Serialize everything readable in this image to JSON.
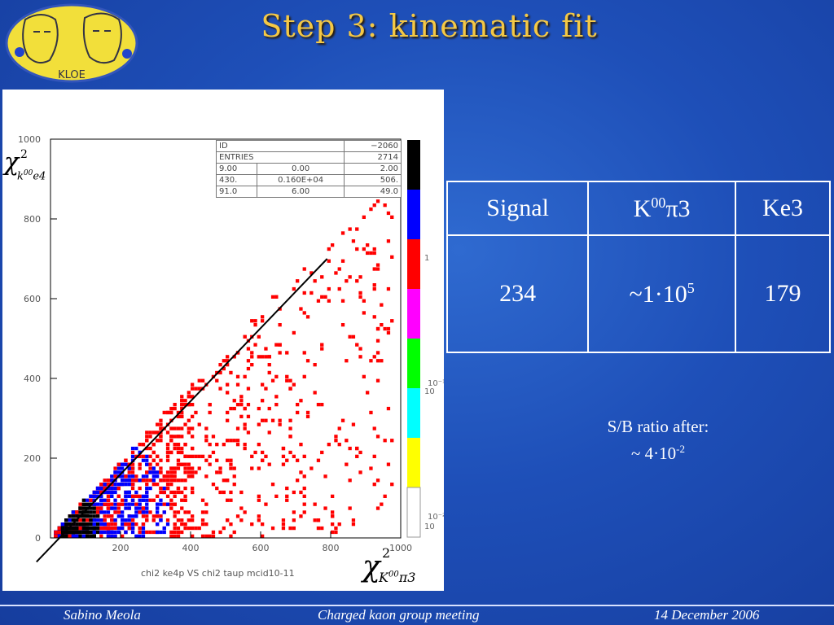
{
  "slide": {
    "title": "Step 3: kinematic fit",
    "logo_text": "KLOE"
  },
  "plot": {
    "y_axis_label": "χ²_{k00e4}",
    "x_axis_label": "χ²_{K00π3}",
    "caption": "chi2 ke4p VS chi2 taup mcid10-11",
    "x_ticks": [
      "200",
      "400",
      "600",
      "800",
      "1000"
    ],
    "y_ticks": [
      "0",
      "200",
      "400",
      "600",
      "800",
      "1000"
    ],
    "colorbar_ticks": [
      "1",
      "10⁻¹",
      "10",
      "10⁻²",
      "10"
    ],
    "colorbar_colors": [
      "#000000",
      "#0000ff",
      "#ff0000",
      "#ff00ff",
      "#00ff00",
      "#00ffff",
      "#ffff00",
      "#ffffff"
    ],
    "stats": {
      "id_label": "ID",
      "id_value": "−2060",
      "entries_label": "ENTRIES",
      "entries_value": "2714",
      "row1": [
        "9.00",
        "0.00",
        "2.00"
      ],
      "row2": [
        "430.",
        "0.160E+04",
        "506."
      ],
      "row3": [
        "91.0",
        "6.00",
        "49.0"
      ]
    },
    "x_range": [
      0,
      1000
    ],
    "y_range": [
      0,
      1000
    ],
    "cut_line": {
      "x1": -40,
      "y1": -60,
      "x2": 790,
      "y2": 700
    }
  },
  "table": {
    "headers": {
      "signal": "Signal",
      "kpi3_base": "K",
      "kpi3_sup": "00",
      "kpi3_rest": "π3",
      "ke3": "Ke3"
    },
    "values": {
      "signal": "234",
      "kpi3_base": "~1·10",
      "kpi3_sup": "5",
      "ke3": "179"
    }
  },
  "sb": {
    "line1": "S/B ratio after:",
    "line2_base": "~ 4·10",
    "line2_sup": "-2"
  },
  "footer": {
    "author": "Sabino Meola",
    "meeting": "Charged kaon group meeting",
    "date": "14 December 2006"
  },
  "colors": {
    "title": "#f4c846",
    "background": "#1e4fb8",
    "logo_bg": "#f2df3a"
  }
}
